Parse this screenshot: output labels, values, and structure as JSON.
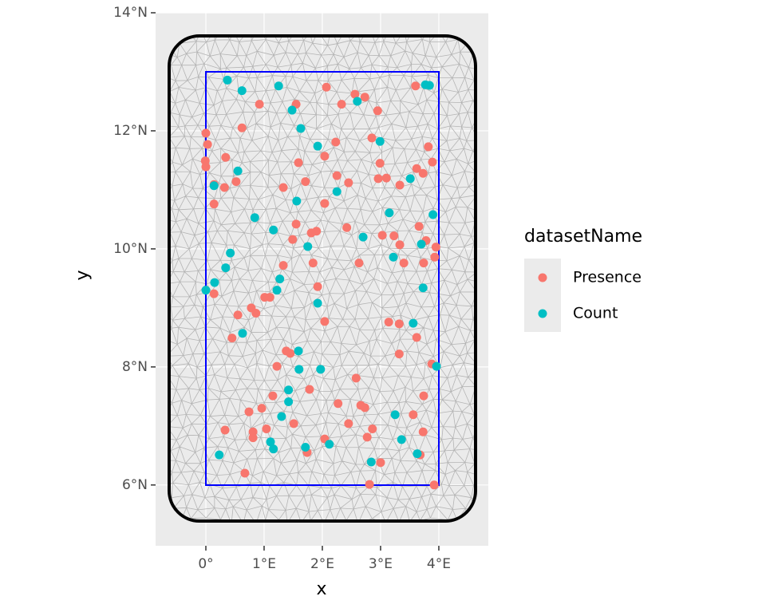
{
  "chart_data": {
    "type": "scatter",
    "x_label": "x",
    "y_label": "y",
    "xlim": [
      -0.863,
      4.85
    ],
    "ylim": [
      4.97,
      14
    ],
    "xticks": [
      {
        "value": 0,
        "label": "0°"
      },
      {
        "value": 1,
        "label": "1°E"
      },
      {
        "value": 2,
        "label": "2°E"
      },
      {
        "value": 3,
        "label": "3°E"
      },
      {
        "value": 4,
        "label": "4°E"
      }
    ],
    "yticks": [
      {
        "value": 6,
        "label": "6°N"
      },
      {
        "value": 8,
        "label": "8°N"
      },
      {
        "value": 10,
        "label": "10°N"
      },
      {
        "value": 12,
        "label": "12°N"
      },
      {
        "value": 14,
        "label": "14°N"
      }
    ],
    "grid": true,
    "legend_title": "datasetName",
    "series": [
      {
        "name": "Presence",
        "color": "#F8766D",
        "x": [
          0,
          0.03,
          -0.01,
          0,
          0.34,
          0.14,
          0.32,
          0.52,
          0.14,
          0.62,
          0.92,
          1.55,
          2.07,
          2.33,
          2.56,
          2.73,
          2.95,
          3.6,
          1.59,
          2.04,
          2.23,
          2.85,
          2.99,
          2.96,
          3.1,
          3.33,
          3.62,
          3.73,
          3.82,
          3.89,
          1.33,
          1.71,
          2.25,
          2.45,
          2.04,
          1.55,
          1.49,
          1.81,
          1.9,
          2.42,
          3.03,
          3.23,
          3.33,
          3.66,
          3.78,
          3.95,
          3.93,
          3.74,
          3.4,
          2.63,
          1.84,
          1.33,
          1.92,
          0.14,
          1.01,
          1.1,
          0.78,
          0.86,
          0.55,
          0.45,
          2.04,
          3.14,
          3.32,
          3.62,
          3.32,
          1.38,
          1.45,
          1.22,
          2.58,
          1.78,
          3.88,
          3.74,
          1.15,
          0.74,
          0.96,
          2.27,
          2.66,
          2.73,
          3.56,
          1.51,
          2.45,
          1.04,
          0.33,
          0.81,
          0.81,
          2.86,
          2.77,
          3.73,
          2.04,
          1.74,
          3.68,
          3.0,
          0.67,
          2.81,
          3.92
        ],
        "values": [
          11.96,
          11.77,
          11.49,
          11.39,
          11.55,
          11.09,
          11.04,
          11.14,
          10.76,
          12.05,
          12.45,
          12.45,
          12.74,
          12.45,
          12.62,
          12.57,
          12.34,
          12.76,
          11.46,
          11.57,
          11.81,
          11.88,
          11.45,
          11.19,
          11.2,
          11.08,
          11.36,
          11.28,
          11.73,
          11.47,
          11.04,
          11.14,
          11.24,
          11.12,
          10.77,
          10.42,
          10.16,
          10.27,
          10.3,
          10.36,
          10.23,
          10.22,
          10.07,
          10.38,
          10.14,
          10.03,
          9.86,
          9.76,
          9.76,
          9.76,
          9.76,
          9.72,
          9.36,
          9.24,
          9.18,
          9.18,
          9.0,
          8.91,
          8.88,
          8.49,
          8.77,
          8.76,
          8.73,
          8.5,
          8.22,
          8.27,
          8.23,
          8.01,
          7.81,
          7.62,
          8.05,
          7.51,
          7.51,
          7.24,
          7.3,
          7.38,
          7.35,
          7.31,
          7.19,
          7.04,
          7.04,
          6.95,
          6.93,
          6.9,
          6.8,
          6.95,
          6.81,
          6.9,
          6.78,
          6.55,
          6.51,
          6.38,
          6.2,
          6.01,
          6.0
        ]
      },
      {
        "name": "Count",
        "color": "#00BFC4",
        "x": [
          0.37,
          0.62,
          1.25,
          1.48,
          1.63,
          2.6,
          3.77,
          3.84,
          1.92,
          2.99,
          0.55,
          0.14,
          2.25,
          3.51,
          1.56,
          0.84,
          3.15,
          3.9,
          1.16,
          2.7,
          3.7,
          1.75,
          0.42,
          3.22,
          0.34,
          1.27,
          0,
          1.22,
          3.73,
          1.92,
          0.63,
          3.56,
          1.59,
          1.6,
          1.97,
          3.96,
          1.42,
          1.42,
          1.3,
          3.25,
          0.15,
          1.11,
          1.16,
          1.71,
          2.12,
          3.36,
          3.63,
          0.23,
          2.84
        ],
        "values": [
          12.86,
          12.68,
          12.76,
          12.35,
          12.04,
          12.5,
          12.78,
          12.77,
          11.74,
          11.82,
          11.32,
          11.07,
          10.97,
          11.19,
          10.81,
          10.53,
          10.61,
          10.58,
          10.32,
          10.2,
          10.08,
          10.04,
          9.93,
          9.86,
          9.68,
          9.49,
          9.3,
          9.3,
          9.34,
          9.08,
          8.57,
          8.74,
          8.27,
          7.96,
          7.96,
          8.01,
          7.61,
          7.41,
          7.16,
          7.19,
          9.43,
          6.73,
          6.61,
          6.64,
          6.69,
          6.77,
          6.53,
          6.51,
          6.39
        ]
      }
    ]
  }
}
